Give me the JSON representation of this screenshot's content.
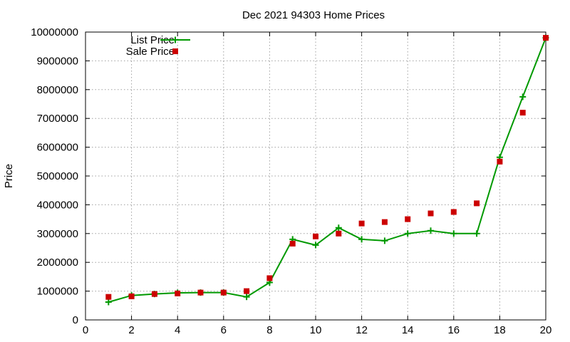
{
  "chart_data": {
    "type": "line",
    "title": "Dec 2021 94303 Home Prices",
    "xlabel": "",
    "ylabel": "Price",
    "xlim": [
      0,
      20
    ],
    "ylim": [
      0,
      10000000
    ],
    "xticks": [
      0,
      2,
      4,
      6,
      8,
      10,
      12,
      14,
      16,
      18,
      20
    ],
    "yticks": [
      0,
      1000000,
      2000000,
      3000000,
      4000000,
      5000000,
      6000000,
      7000000,
      8000000,
      9000000,
      10000000
    ],
    "grid": true,
    "legend_position": "top-left",
    "x": [
      1,
      2,
      3,
      4,
      5,
      6,
      7,
      8,
      9,
      10,
      11,
      12,
      13,
      14,
      15,
      16,
      17,
      18,
      19,
      20
    ],
    "series": [
      {
        "name": "List Price",
        "style": "line-cross",
        "color": "#009900",
        "values": [
          620000,
          850000,
          900000,
          940000,
          950000,
          950000,
          800000,
          1300000,
          2800000,
          2600000,
          3200000,
          2800000,
          2750000,
          3000000,
          3100000,
          3000000,
          3000000,
          5650000,
          7750000,
          9800000
        ]
      },
      {
        "name": "Sale Price",
        "style": "square",
        "color": "#cc0000",
        "values": [
          800000,
          820000,
          900000,
          920000,
          950000,
          950000,
          1000000,
          1450000,
          2650000,
          2900000,
          3000000,
          3350000,
          3400000,
          3500000,
          3700000,
          3750000,
          4050000,
          5500000,
          7200000,
          9800000
        ]
      }
    ]
  }
}
